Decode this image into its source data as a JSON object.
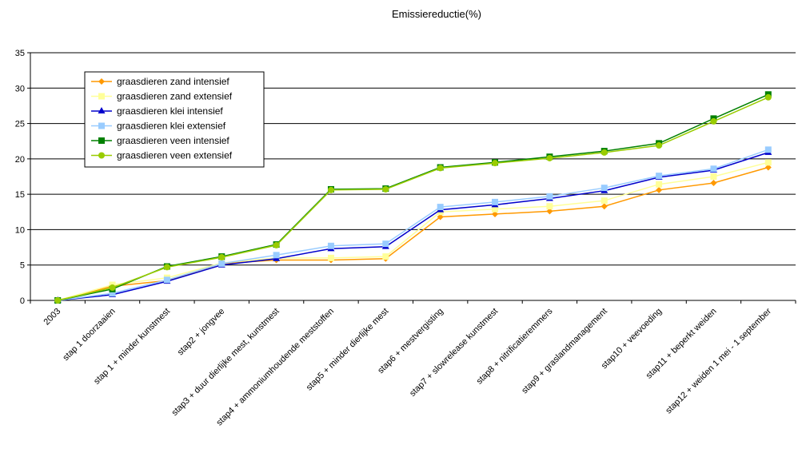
{
  "chart_data": {
    "type": "line",
    "title": "Emissiereductie(%)",
    "xlabel": "",
    "ylabel": "",
    "ylim": [
      0,
      35
    ],
    "yticks": [
      0,
      5,
      10,
      15,
      20,
      25,
      30,
      35
    ],
    "grid": true,
    "legend_position": "top-left",
    "categories": [
      "2003",
      "stap 1 doorzaaien",
      "stap 1 + minder kunstmest",
      "stap2 + jongvee",
      "stap3 + duur dierlijke mest, kunstmest",
      "stap4 + ammoniumhoudende meststoffen",
      "stap5 + minder dierlijke mest",
      "stap6 + mestvergisting",
      "stap7 + slowrelease kunstmest",
      "stap8 + nitrificatieremmers",
      "stap9 + graslandmanagement",
      "stap10 + veevoeding",
      "stap11 + beperkt weiden",
      "stap12 + weiden 1 mei - 1 september"
    ],
    "series": [
      {
        "name": "graasdieren zand intensief",
        "color": "#FF9900",
        "marker": "diamond",
        "values": [
          0,
          2.0,
          2.8,
          5.2,
          5.7,
          5.7,
          5.9,
          11.8,
          12.2,
          12.6,
          13.3,
          15.6,
          16.6,
          18.8
        ]
      },
      {
        "name": "graasdieren zand extensief",
        "color": "#FFFF99",
        "marker": "square",
        "values": [
          0,
          2.2,
          3.2,
          5.3,
          6.0,
          6.0,
          6.2,
          12.5,
          12.9,
          13.3,
          14.1,
          16.4,
          17.5,
          19.5
        ]
      },
      {
        "name": "graasdieren klei intensief",
        "color": "#0000CC",
        "marker": "triangle",
        "values": [
          0,
          0.8,
          2.7,
          5.0,
          5.9,
          7.3,
          7.6,
          12.8,
          13.5,
          14.4,
          15.5,
          17.4,
          18.4,
          20.9
        ]
      },
      {
        "name": "graasdieren klei extensief",
        "color": "#99CCFF",
        "marker": "square",
        "values": [
          0,
          1.0,
          2.9,
          5.2,
          6.4,
          7.7,
          8.0,
          13.2,
          13.9,
          14.7,
          15.9,
          17.6,
          18.6,
          21.3
        ]
      },
      {
        "name": "graasdieren veen intensief",
        "color": "#008000",
        "marker": "square",
        "values": [
          0,
          1.6,
          4.8,
          6.2,
          7.9,
          15.7,
          15.8,
          18.8,
          19.5,
          20.3,
          21.1,
          22.2,
          25.7,
          29.1
        ]
      },
      {
        "name": "graasdieren veen extensief",
        "color": "#99CC00",
        "marker": "circle",
        "values": [
          0,
          1.8,
          4.7,
          6.1,
          7.8,
          15.6,
          15.7,
          18.7,
          19.4,
          20.1,
          20.9,
          21.9,
          25.3,
          28.7
        ]
      }
    ]
  }
}
